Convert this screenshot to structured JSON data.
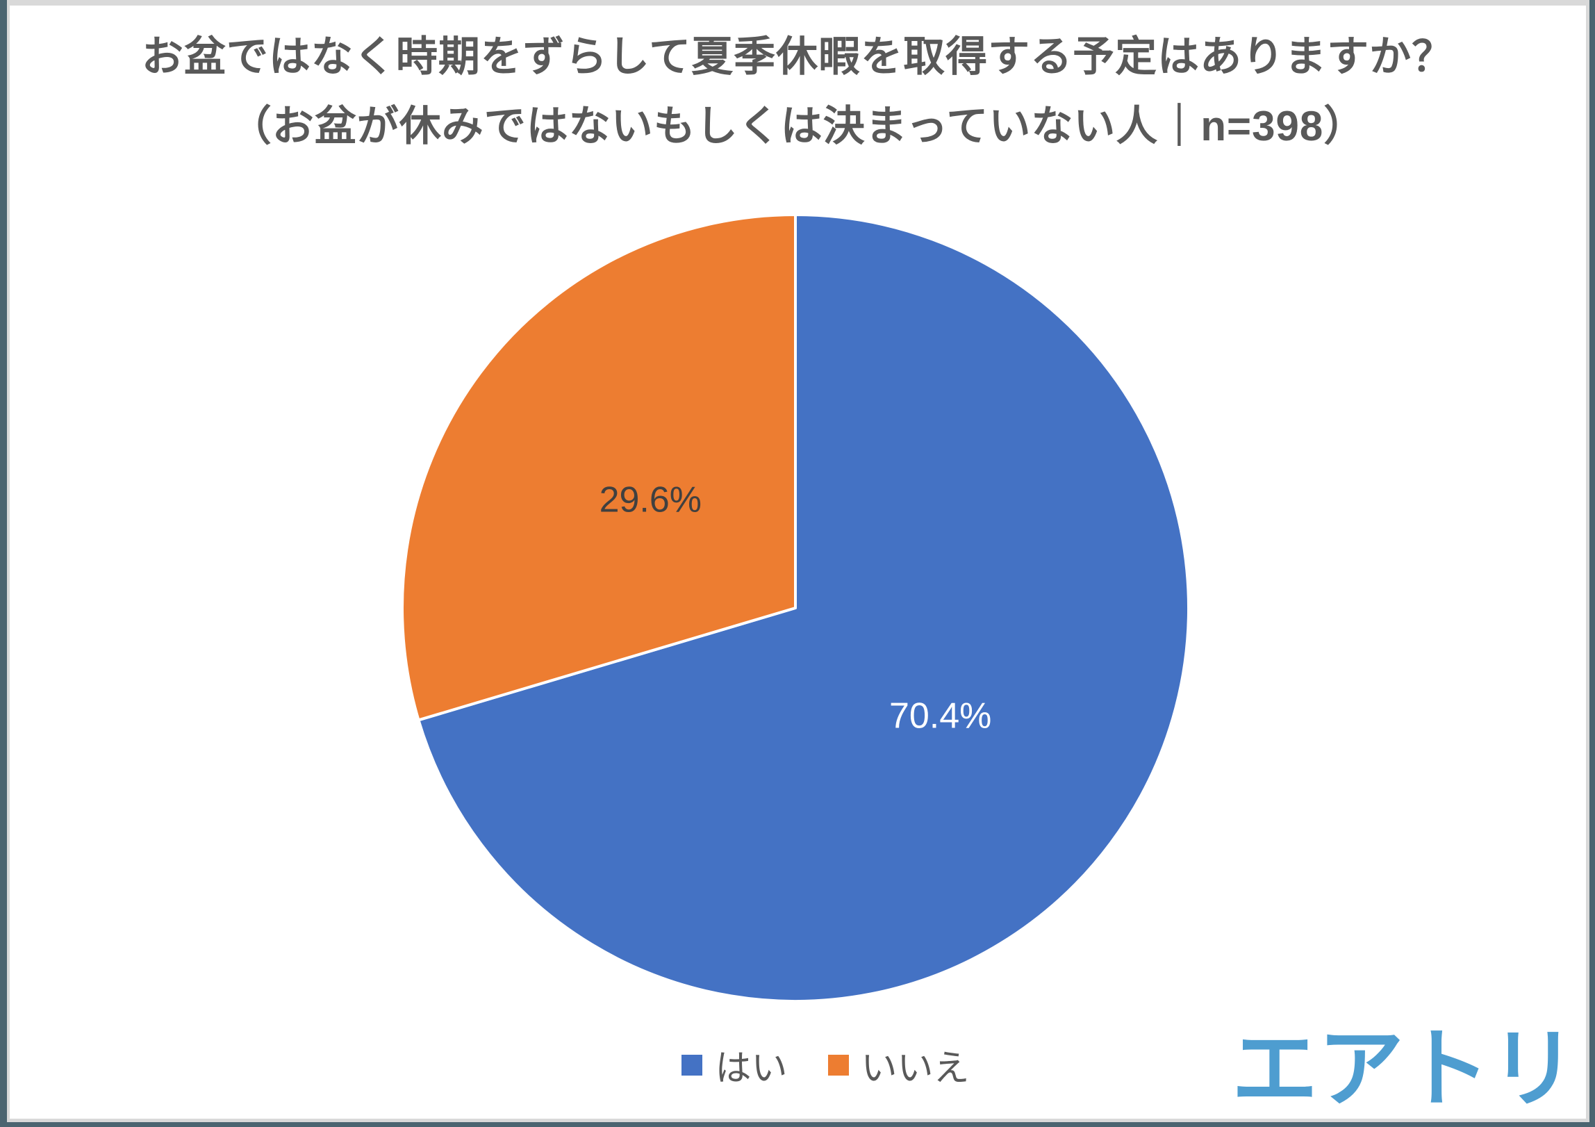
{
  "title": {
    "line1": "お盆ではなく時期をずらして夏季休暇を取得する予定はありますか？",
    "line2": "（お盆が休みではないもしくは決まっていない人｜n=398）"
  },
  "chart_data": {
    "type": "pie",
    "title": "お盆ではなく時期をずらして夏季休暇を取得する予定はありますか？（お盆が休みではないもしくは決まっていない人｜n=398）",
    "sample_size_text": "n=398",
    "categories": [
      "はい",
      "いいえ"
    ],
    "values": [
      70.4,
      29.6
    ],
    "data_labels": [
      "70.4%",
      "29.6%"
    ],
    "slice_colors": [
      "#4472C4",
      "#ED7D31"
    ],
    "label_text_colors": [
      "#FFFFFF",
      "#404040"
    ],
    "start_angle_deg": 0,
    "direction": "clockwise",
    "slice_border_color": "#FFFFFF",
    "legend_position": "bottom"
  },
  "legend": {
    "items": [
      {
        "label": "はい",
        "color": "#4472C4"
      },
      {
        "label": "いいえ",
        "color": "#ED7D31"
      }
    ]
  },
  "logo": {
    "text": "エアトリ",
    "color": "#4E9DD0"
  },
  "frame": {
    "outer_color": "#4B6470",
    "inner_color": "#D9D9D9"
  }
}
